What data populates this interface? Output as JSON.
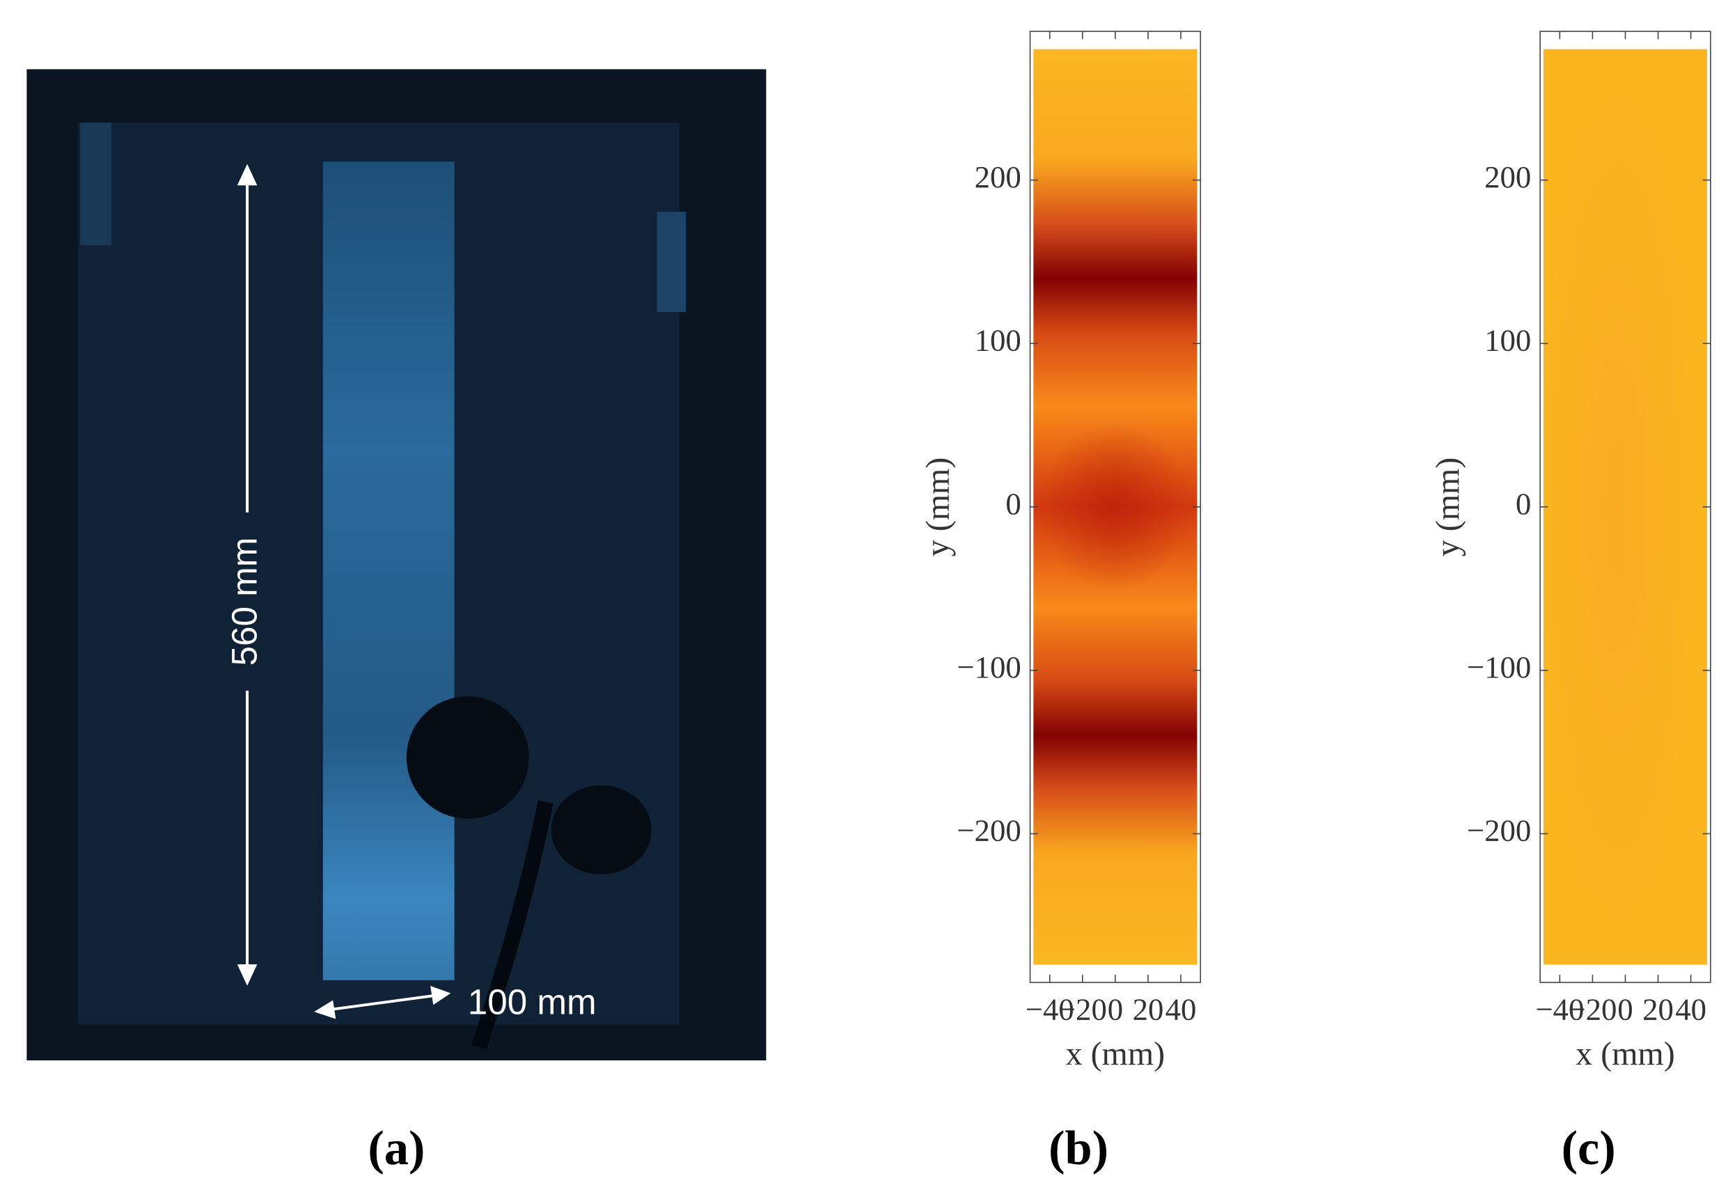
{
  "photo": {
    "label": "(a)",
    "annotations": [
      "560 mm",
      "100 mm"
    ]
  },
  "chart_data": [
    {
      "type": "heatmap",
      "label": "(b)",
      "xlabel": "x (mm)",
      "ylabel": "y (mm)",
      "xlim": [
        -52,
        52
      ],
      "ylim": [
        -291,
        291
      ],
      "xticks": [
        {
          "value": -40,
          "label": "−40"
        },
        {
          "value": -20,
          "label": "−20"
        },
        0,
        20,
        40
      ],
      "yticks": [
        {
          "value": -200,
          "label": "−200"
        },
        {
          "value": -100,
          "label": "−100"
        },
        0,
        100,
        200
      ]
    },
    {
      "type": "heatmap",
      "label": "(c)",
      "xlabel": "x (mm)",
      "ylabel": "y (mm)",
      "xlim": [
        -52,
        52
      ],
      "ylim": [
        -291,
        291
      ],
      "xticks": [
        {
          "value": -40,
          "label": "−40"
        },
        {
          "value": -20,
          "label": "−20"
        },
        0,
        20,
        40
      ],
      "yticks": [
        {
          "value": -200,
          "label": "−200"
        },
        {
          "value": -100,
          "label": "−100"
        },
        0,
        100,
        200
      ]
    }
  ]
}
